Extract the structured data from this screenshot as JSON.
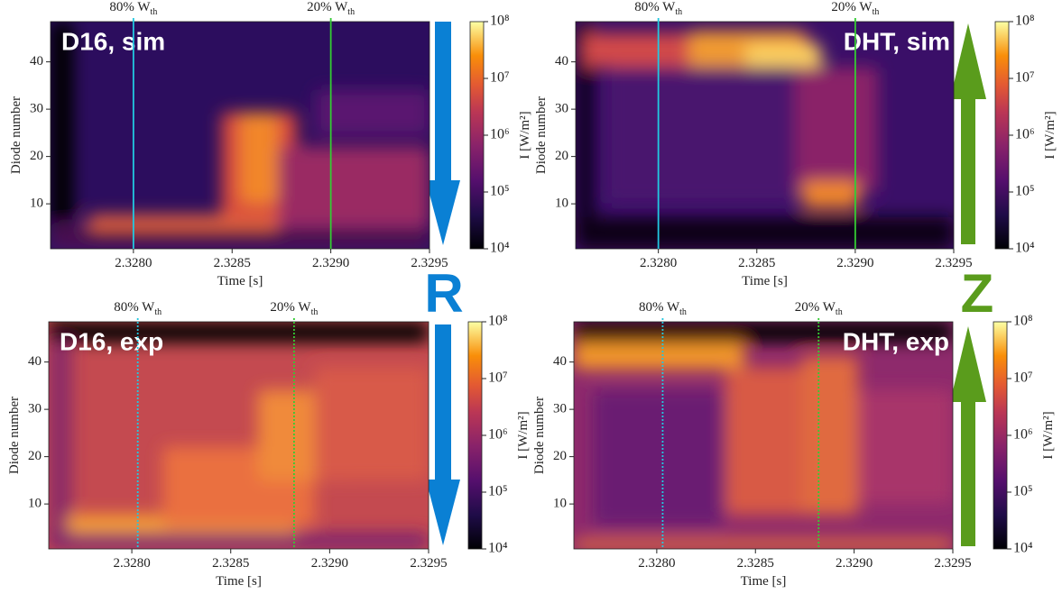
{
  "chart_data": [
    {
      "type": "heatmap",
      "title": "D16, sim",
      "xlabel": "Time [s]",
      "ylabel": "Diode number",
      "xlim": [
        2.32758,
        2.3295
      ],
      "ylim": [
        0.5,
        48.5
      ],
      "xticks": [
        {
          "value": 2.328,
          "label": "2.3280"
        },
        {
          "value": 2.3285,
          "label": "2.3285"
        },
        {
          "value": 2.329,
          "label": "2.3290"
        },
        {
          "value": 2.3295,
          "label": "2.3295"
        }
      ],
      "yticks": [
        10,
        20,
        30,
        40
      ],
      "colorbar": {
        "label": "I [W/m²]",
        "log": true,
        "lim": [
          10000,
          100000000
        ],
        "ticks": [
          {
            "value": 10000,
            "label": "10⁴"
          },
          {
            "value": 100000,
            "label": "10⁵"
          },
          {
            "value": 1000000,
            "label": "10⁶"
          },
          {
            "value": 10000000,
            "label": "10⁷"
          },
          {
            "value": 100000000,
            "label": "10⁸"
          }
        ]
      },
      "vlines": [
        {
          "x": 2.328,
          "color": "#22c8e0",
          "style": "solid",
          "label": "80% W",
          "subscript": "th"
        },
        {
          "x": 2.329,
          "color": "#33cc33",
          "style": "solid",
          "label": "20% W",
          "subscript": "th"
        }
      ]
    },
    {
      "type": "heatmap",
      "title": "DHT, sim",
      "xlabel": "Time [s]",
      "ylabel": "Diode number",
      "xlim": [
        2.32758,
        2.3295
      ],
      "ylim": [
        0.5,
        48.5
      ],
      "xticks": [
        {
          "value": 2.328,
          "label": "2.3280"
        },
        {
          "value": 2.3285,
          "label": "2.3285"
        },
        {
          "value": 2.329,
          "label": "2.3290"
        },
        {
          "value": 2.3295,
          "label": "2.3295"
        }
      ],
      "yticks": [
        10,
        20,
        30,
        40
      ],
      "colorbar": {
        "label": "I [W/m²]",
        "log": true,
        "lim": [
          10000,
          100000000
        ],
        "ticks": [
          {
            "value": 10000,
            "label": "10⁴"
          },
          {
            "value": 100000,
            "label": "10⁵"
          },
          {
            "value": 1000000,
            "label": "10⁶"
          },
          {
            "value": 10000000,
            "label": "10⁷"
          },
          {
            "value": 100000000,
            "label": "10⁸"
          }
        ]
      },
      "vlines": [
        {
          "x": 2.328,
          "color": "#22c8e0",
          "style": "solid",
          "label": "80% W",
          "subscript": "th"
        },
        {
          "x": 2.329,
          "color": "#33cc33",
          "style": "solid",
          "label": "20% W",
          "subscript": "th"
        }
      ]
    },
    {
      "type": "heatmap",
      "title": "D16, exp",
      "xlabel": "Time [s]",
      "ylabel": "Diode number",
      "xlim": [
        2.32758,
        2.3295
      ],
      "ylim": [
        0.5,
        48.5
      ],
      "xticks": [
        {
          "value": 2.328,
          "label": "2.3280"
        },
        {
          "value": 2.3285,
          "label": "2.3285"
        },
        {
          "value": 2.329,
          "label": "2.3290"
        },
        {
          "value": 2.3295,
          "label": "2.3295"
        }
      ],
      "yticks": [
        10,
        20,
        30,
        40
      ],
      "colorbar": {
        "label": "I [W/m²]",
        "log": true,
        "lim": [
          10000,
          100000000
        ],
        "ticks": [
          {
            "value": 10000,
            "label": "10⁴"
          },
          {
            "value": 100000,
            "label": "10⁵"
          },
          {
            "value": 1000000,
            "label": "10⁶"
          },
          {
            "value": 10000000,
            "label": "10⁷"
          },
          {
            "value": 100000000,
            "label": "10⁸"
          }
        ]
      },
      "vlines": [
        {
          "x": 2.32803,
          "color": "#22c8e0",
          "style": "dotted",
          "label": "80% W",
          "subscript": "th"
        },
        {
          "x": 2.32882,
          "color": "#33cc33",
          "style": "dotted",
          "label": "20% W",
          "subscript": "th"
        }
      ]
    },
    {
      "type": "heatmap",
      "title": "DHT, exp",
      "xlabel": "Time [s]",
      "ylabel": "Diode number",
      "xlim": [
        2.32758,
        2.3295
      ],
      "ylim": [
        0.5,
        48.5
      ],
      "xticks": [
        {
          "value": 2.328,
          "label": "2.3280"
        },
        {
          "value": 2.3285,
          "label": "2.3285"
        },
        {
          "value": 2.329,
          "label": "2.3290"
        },
        {
          "value": 2.3295,
          "label": "2.3295"
        }
      ],
      "yticks": [
        10,
        20,
        30,
        40
      ],
      "colorbar": {
        "label": "I [W/m²]",
        "log": true,
        "lim": [
          10000,
          100000000
        ],
        "ticks": [
          {
            "value": 10000,
            "label": "10⁴"
          },
          {
            "value": 100000,
            "label": "10⁵"
          },
          {
            "value": 1000000,
            "label": "10⁶"
          },
          {
            "value": 10000000,
            "label": "10⁷"
          },
          {
            "value": 100000000,
            "label": "10⁸"
          }
        ]
      },
      "vlines": [
        {
          "x": 2.32803,
          "color": "#22c8e0",
          "style": "dotted",
          "label": "80% W",
          "subscript": "th"
        },
        {
          "x": 2.32882,
          "color": "#33cc33",
          "style": "dotted",
          "label": "20% W",
          "subscript": "th"
        }
      ]
    }
  ],
  "arrow_labels": {
    "radial": "R",
    "vertical": "Z"
  }
}
